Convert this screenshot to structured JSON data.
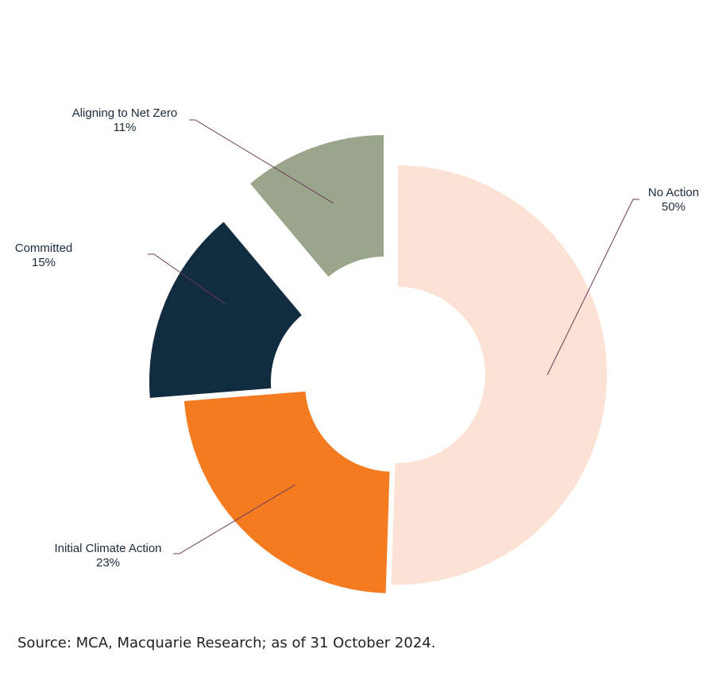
{
  "chart_data": {
    "type": "pie",
    "variant": "exploded donut",
    "categories": [
      "No Action",
      "Initial Climate Action",
      "Committed",
      "Aligning to Net Zero"
    ],
    "values": [
      50,
      23,
      15,
      11
    ],
    "labels": [
      "No Action",
      "Initial Climate Action",
      "Committed",
      "Aligning to Net Zero"
    ],
    "value_labels": [
      "50%",
      "23%",
      "15%",
      "11%"
    ],
    "colors": [
      "#FBE2D4",
      "#F47B20",
      "#112C3F",
      "#9AA68B"
    ],
    "leader_color": "#6B3A5E",
    "legend": "none"
  },
  "source": "Source: MCA, Macquarie Research; as of 31 October 2024."
}
